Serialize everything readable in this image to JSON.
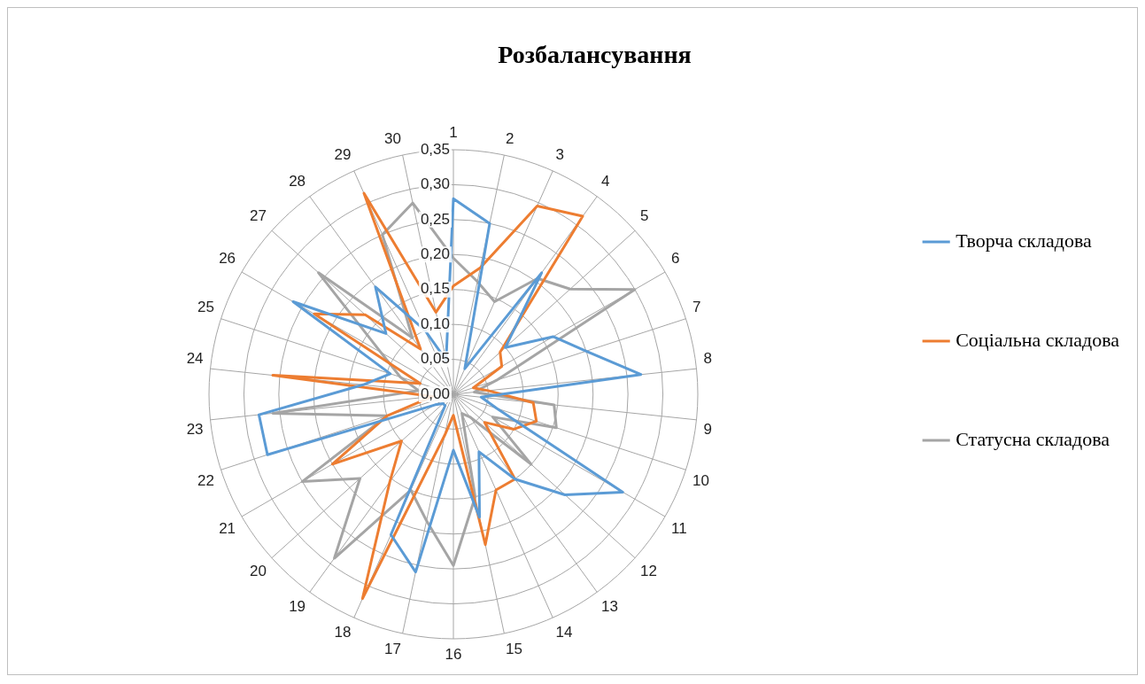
{
  "chart_data": {
    "type": "radar",
    "title": "Розбалансування",
    "categories": [
      "1",
      "2",
      "3",
      "4",
      "5",
      "6",
      "7",
      "8",
      "9",
      "10",
      "11",
      "12",
      "13",
      "14",
      "15",
      "16",
      "17",
      "18",
      "19",
      "20",
      "21",
      "22",
      "23",
      "24",
      "25",
      "26",
      "27",
      "28",
      "29",
      "30"
    ],
    "ylim": [
      0,
      0.35
    ],
    "yticks": [
      {
        "value": 0,
        "label": "0,00"
      },
      {
        "value": 0.05,
        "label": "0,05"
      },
      {
        "value": 0.1,
        "label": "0,10"
      },
      {
        "value": 0.15,
        "label": "0,15"
      },
      {
        "value": 0.2,
        "label": "0,20"
      },
      {
        "value": 0.25,
        "label": "0,25"
      },
      {
        "value": 0.3,
        "label": "0,30"
      },
      {
        "value": 0.35,
        "label": "0,35"
      }
    ],
    "grid": true,
    "legend": "right",
    "marker": "none",
    "series": [
      {
        "name": "Творча складова",
        "color": "#5b9bd5",
        "values": [
          0.28,
          0.25,
          0.04,
          0.215,
          0.1,
          0.165,
          0.2,
          0.27,
          0.04,
          0.065,
          0.28,
          0.215,
          0.15,
          0.09,
          0.18,
          0.08,
          0.26,
          0.22,
          0.02,
          0.02,
          0.03,
          0.28,
          0.28,
          0.13,
          0.095,
          0.265,
          0.13,
          0.19,
          0.1,
          0.05
        ]
      },
      {
        "name": "Соціальна складова",
        "color": "#ed7d31",
        "values": [
          0.155,
          0.185,
          0.295,
          0.315,
          0.09,
          0.08,
          0.03,
          0.05,
          0.115,
          0.125,
          0.1,
          0.06,
          0.15,
          0.15,
          0.22,
          0.03,
          0.06,
          0.32,
          0.155,
          0.1,
          0.2,
          0.1,
          0.03,
          0.26,
          0.05,
          0.23,
          0.17,
          0.08,
          0.315,
          0.12
        ]
      },
      {
        "name": "Статусна складова",
        "color": "#a5a5a5",
        "values": [
          0.195,
          0.165,
          0.145,
          0.205,
          0.225,
          0.3,
          0.065,
          0.03,
          0.145,
          0.155,
          0.065,
          0.15,
          0.04,
          0.03,
          0.15,
          0.245,
          0.185,
          0.15,
          0.29,
          0.18,
          0.25,
          0.1,
          0.26,
          0.05,
          0.08,
          0.12,
          0.26,
          0.1,
          0.25,
          0.28
        ]
      }
    ]
  }
}
